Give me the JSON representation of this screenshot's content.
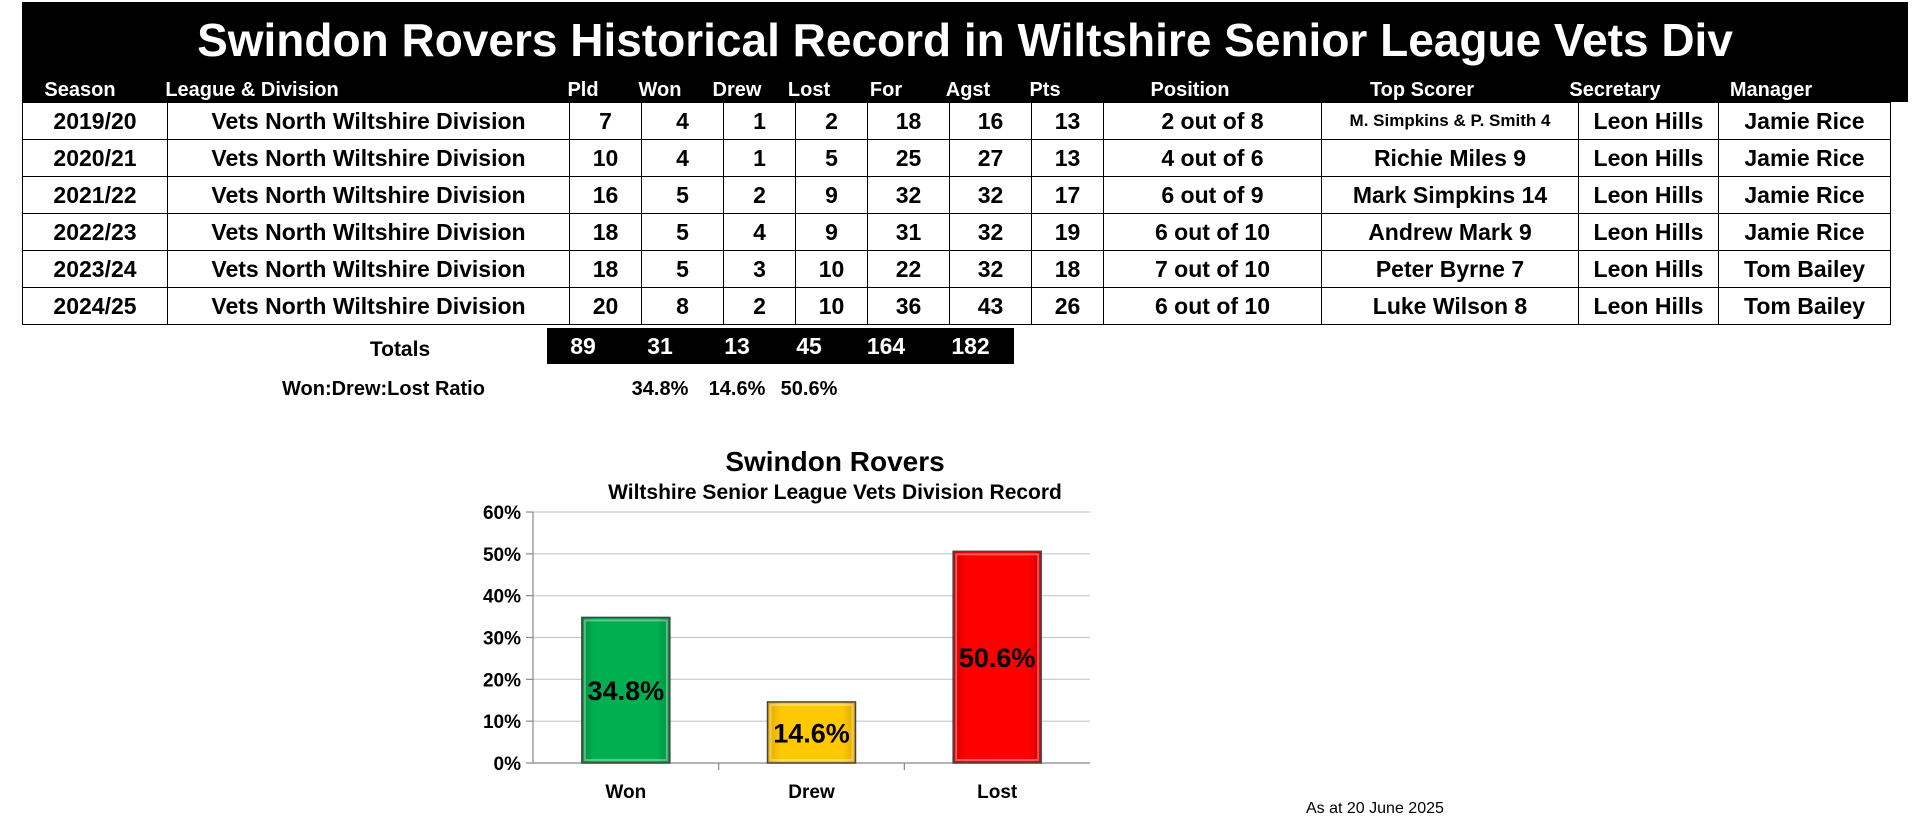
{
  "title": "Swindon Rovers Historical Record in Wiltshire Senior League Vets Div",
  "headers": [
    "Season",
    "League & Division",
    "Pld",
    "Won",
    "Drew",
    "Lost",
    "For",
    "Agst",
    "Pts",
    "Position",
    "Top Scorer",
    "Secretary",
    "Manager"
  ],
  "rows": [
    [
      "2019/20",
      "Vets North Wiltshire Division",
      "7",
      "4",
      "1",
      "2",
      "18",
      "16",
      "13",
      "2 out of 8",
      "M. Simpkins & P. Smith 4",
      "Leon Hills",
      "Jamie Rice"
    ],
    [
      "2020/21",
      "Vets North Wiltshire Division",
      "10",
      "4",
      "1",
      "5",
      "25",
      "27",
      "13",
      "4 out of 6",
      "Richie Miles 9",
      "Leon Hills",
      "Jamie Rice"
    ],
    [
      "2021/22",
      "Vets North Wiltshire Division",
      "16",
      "5",
      "2",
      "9",
      "32",
      "32",
      "17",
      "6 out of 9",
      "Mark Simpkins 14",
      "Leon Hills",
      "Jamie Rice"
    ],
    [
      "2022/23",
      "Vets North Wiltshire Division",
      "18",
      "5",
      "4",
      "9",
      "31",
      "32",
      "19",
      "6 out of 10",
      "Andrew Mark 9",
      "Leon Hills",
      "Jamie Rice"
    ],
    [
      "2023/24",
      "Vets North Wiltshire Division",
      "18",
      "5",
      "3",
      "10",
      "22",
      "32",
      "18",
      "7 out of 10",
      "Peter Byrne 7",
      "Leon Hills",
      "Tom Bailey"
    ],
    [
      "2024/25",
      "Vets North Wiltshire Division",
      "20",
      "8",
      "2",
      "10",
      "36",
      "43",
      "26",
      "6 out of 10",
      "Luke Wilson 8",
      "Leon Hills",
      "Tom Bailey"
    ]
  ],
  "totals": {
    "label": "Totals",
    "pld": "89",
    "won": "31",
    "drew": "13",
    "lost": "45",
    "for": "164",
    "agst": "182"
  },
  "ratio": {
    "label": "Won:Drew:Lost Ratio",
    "won": "34.8%",
    "drew": "14.6%",
    "lost": "50.6%"
  },
  "footnote": "As at 20 June 2025",
  "chart_data": {
    "type": "bar",
    "title": "Swindon Rovers",
    "subtitle": "Wiltshire Senior League Vets Division Record",
    "categories": [
      "Won",
      "Drew",
      "Lost"
    ],
    "values": [
      34.8,
      14.6,
      50.6
    ],
    "data_labels": [
      "34.8%",
      "14.6%",
      "50.6%"
    ],
    "colors": [
      "#00B050",
      "#FFC000",
      "#FF0000"
    ],
    "ylim": [
      0,
      60
    ],
    "yticks": [
      "0%",
      "10%",
      "20%",
      "30%",
      "40%",
      "50%",
      "60%"
    ],
    "grid": true,
    "legend": "none"
  }
}
